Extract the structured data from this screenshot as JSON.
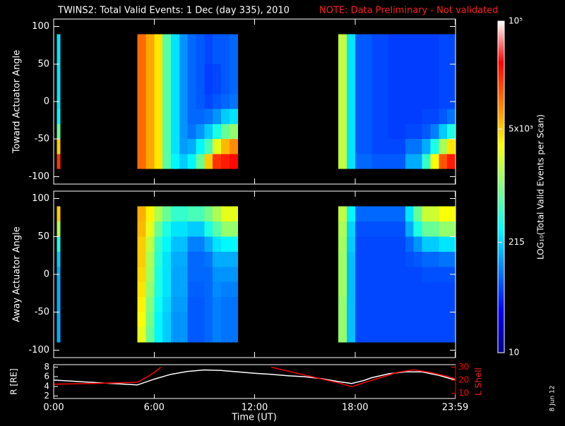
{
  "chart_data": [
    {
      "type": "heatmap",
      "title": "TWINS2: Total Valid Events:  1 Dec (day 335), 2010",
      "note": "NOTE: Data Preliminary - Not validated",
      "ylabel": "Toward Actuator Angle",
      "xlim": [
        0,
        24
      ],
      "ylim": [
        -110,
        110
      ],
      "yticks": [
        100,
        50,
        0,
        -50,
        -100
      ],
      "angle_edges": [
        -90,
        -70,
        -50,
        -30,
        -10,
        10,
        30,
        50,
        70,
        90
      ],
      "colorbar": {
        "label": "LOG₁₀(Total Valid Events per Scan)",
        "lim": [
          10,
          100000
        ],
        "log": true,
        "ticks": [
          10,
          215,
          {
            "value": 5000,
            "label": "5x10³"
          },
          {
            "value": 100000,
            "label": "10⁵"
          }
        ]
      },
      "columns": [
        {
          "start": 0.2,
          "end": 0.4,
          "values": [
            20000,
            5000,
            800,
            300,
            250,
            250,
            250,
            250,
            250
          ]
        },
        {
          "start": 5.0,
          "end": 5.5,
          "values": [
            12000,
            12000,
            12000,
            12000,
            12000,
            12000,
            12000,
            12000,
            12000
          ]
        },
        {
          "start": 5.5,
          "end": 6.0,
          "values": [
            7000,
            7000,
            7000,
            7000,
            7000,
            7000,
            7000,
            7000,
            7000
          ]
        },
        {
          "start": 6.0,
          "end": 6.5,
          "values": [
            4000,
            4000,
            4000,
            4000,
            4000,
            4000,
            4000,
            4000,
            4000
          ]
        },
        {
          "start": 6.5,
          "end": 7.0,
          "values": [
            700,
            700,
            700,
            700,
            700,
            700,
            700,
            700,
            700
          ]
        },
        {
          "start": 7.0,
          "end": 7.5,
          "values": [
            300,
            250,
            250,
            250,
            250,
            250,
            250,
            250,
            250
          ]
        },
        {
          "start": 7.5,
          "end": 8.0,
          "values": [
            200,
            130,
            120,
            120,
            120,
            120,
            120,
            120,
            120
          ]
        },
        {
          "start": 8.0,
          "end": 8.5,
          "values": [
            300,
            150,
            90,
            80,
            80,
            80,
            80,
            80,
            80
          ]
        },
        {
          "start": 8.5,
          "end": 9.0,
          "values": [
            800,
            300,
            120,
            80,
            70,
            70,
            70,
            70,
            70
          ]
        },
        {
          "start": 9.0,
          "end": 9.5,
          "values": [
            5000,
            600,
            200,
            90,
            60,
            55,
            55,
            60,
            60
          ]
        },
        {
          "start": 9.5,
          "end": 10.0,
          "values": [
            20000,
            2500,
            400,
            120,
            70,
            60,
            60,
            70,
            70
          ]
        },
        {
          "start": 10.0,
          "end": 10.5,
          "values": [
            25000,
            6000,
            800,
            200,
            80,
            70,
            70,
            70,
            70
          ]
        },
        {
          "start": 10.5,
          "end": 11.0,
          "values": [
            30000,
            9000,
            1200,
            250,
            90,
            80,
            80,
            80,
            80
          ]
        },
        {
          "start": 17.0,
          "end": 17.5,
          "values": [
            1800,
            1800,
            1800,
            1800,
            1800,
            1800,
            1800,
            1800,
            1800
          ]
        },
        {
          "start": 17.5,
          "end": 18.0,
          "values": [
            250,
            250,
            250,
            250,
            250,
            250,
            250,
            250,
            250
          ]
        },
        {
          "start": 18.0,
          "end": 19.0,
          "values": [
            80,
            70,
            70,
            70,
            70,
            70,
            70,
            70,
            70
          ]
        },
        {
          "start": 19.0,
          "end": 20.0,
          "values": [
            70,
            60,
            60,
            60,
            60,
            60,
            60,
            60,
            60
          ]
        },
        {
          "start": 20.0,
          "end": 21.0,
          "values": [
            70,
            60,
            55,
            55,
            55,
            55,
            55,
            55,
            55
          ]
        },
        {
          "start": 21.0,
          "end": 22.0,
          "values": [
            150,
            90,
            60,
            55,
            55,
            55,
            55,
            55,
            55
          ]
        },
        {
          "start": 22.0,
          "end": 22.5,
          "values": [
            500,
            150,
            70,
            60,
            55,
            55,
            55,
            55,
            55
          ]
        },
        {
          "start": 22.5,
          "end": 23.0,
          "values": [
            3000,
            400,
            100,
            60,
            55,
            55,
            55,
            55,
            55
          ]
        },
        {
          "start": 23.0,
          "end": 23.5,
          "values": [
            15000,
            1500,
            200,
            70,
            60,
            60,
            60,
            60,
            60
          ]
        },
        {
          "start": 23.5,
          "end": 24.0,
          "values": [
            25000,
            4000,
            400,
            90,
            60,
            60,
            60,
            60,
            60
          ]
        }
      ]
    },
    {
      "type": "heatmap",
      "ylabel": "Away Actuator Angle",
      "xlim": [
        0,
        24
      ],
      "ylim": [
        -110,
        110
      ],
      "yticks": [
        100,
        50,
        0,
        -50,
        -100
      ],
      "angle_edges": [
        -90,
        -70,
        -50,
        -30,
        -10,
        10,
        30,
        50,
        70,
        90
      ],
      "columns": [
        {
          "start": 0.2,
          "end": 0.4,
          "values": [
            150,
            150,
            150,
            150,
            150,
            200,
            400,
            1500,
            5000
          ]
        },
        {
          "start": 5.0,
          "end": 5.5,
          "values": [
            2500,
            3000,
            3500,
            4000,
            4500,
            5000,
            5000,
            6000,
            6500
          ]
        },
        {
          "start": 5.5,
          "end": 6.0,
          "values": [
            800,
            900,
            1000,
            1200,
            1400,
            1500,
            1800,
            2500,
            3500
          ]
        },
        {
          "start": 6.0,
          "end": 6.5,
          "values": [
            300,
            300,
            350,
            400,
            400,
            450,
            500,
            800,
            1500
          ]
        },
        {
          "start": 6.5,
          "end": 7.0,
          "values": [
            200,
            200,
            220,
            250,
            250,
            250,
            300,
            400,
            800
          ]
        },
        {
          "start": 7.0,
          "end": 8.0,
          "values": [
            120,
            120,
            130,
            140,
            140,
            150,
            180,
            250,
            500
          ]
        },
        {
          "start": 8.0,
          "end": 9.0,
          "values": [
            70,
            70,
            70,
            75,
            80,
            80,
            100,
            200,
            600
          ]
        },
        {
          "start": 9.0,
          "end": 9.5,
          "values": [
            80,
            80,
            80,
            80,
            80,
            90,
            150,
            400,
            900
          ]
        },
        {
          "start": 9.5,
          "end": 10.0,
          "values": [
            100,
            100,
            100,
            110,
            120,
            150,
            250,
            700,
            1500
          ]
        },
        {
          "start": 10.0,
          "end": 11.0,
          "values": [
            90,
            90,
            90,
            100,
            120,
            150,
            300,
            1200,
            2500
          ]
        },
        {
          "start": 17.0,
          "end": 17.5,
          "values": [
            1200,
            1200,
            1200,
            1300,
            1300,
            1300,
            1400,
            1500,
            1800
          ]
        },
        {
          "start": 17.5,
          "end": 18.0,
          "values": [
            180,
            180,
            180,
            180,
            180,
            180,
            200,
            220,
            300
          ]
        },
        {
          "start": 18.0,
          "end": 21.0,
          "values": [
            60,
            60,
            60,
            60,
            60,
            60,
            60,
            65,
            80
          ]
        },
        {
          "start": 21.0,
          "end": 21.5,
          "values": [
            60,
            60,
            60,
            60,
            60,
            65,
            80,
            150,
            250
          ]
        },
        {
          "start": 21.5,
          "end": 22.0,
          "values": [
            60,
            60,
            60,
            60,
            60,
            70,
            120,
            400,
            800
          ]
        },
        {
          "start": 22.0,
          "end": 23.0,
          "values": [
            60,
            60,
            60,
            60,
            65,
            80,
            200,
            800,
            2000
          ]
        },
        {
          "start": 23.0,
          "end": 24.0,
          "values": [
            60,
            60,
            60,
            60,
            65,
            90,
            250,
            1200,
            3000
          ]
        }
      ]
    },
    {
      "type": "line",
      "xlabel": "Time (UT)",
      "ylabel": "R [RE]",
      "y2label": "L Shell",
      "date": "8 Jun 12",
      "xlim": [
        0,
        24
      ],
      "xticks": [
        {
          "value": 0,
          "label": "0:00"
        },
        {
          "value": 6,
          "label": "6:00"
        },
        {
          "value": 12,
          "label": "12:00"
        },
        {
          "value": 18,
          "label": "18:00"
        },
        {
          "value": 23.98,
          "label": "23:59"
        }
      ],
      "ylim": [
        1.5,
        8.5
      ],
      "yticks": [
        8,
        6,
        4,
        2
      ],
      "y2lim": [
        6,
        32
      ],
      "y2ticks": [
        30,
        20,
        10
      ],
      "series": [
        {
          "name": "R",
          "color": "#ffffff",
          "x": [
            0,
            1,
            2,
            3,
            4,
            5,
            6,
            7,
            8,
            9,
            10,
            11,
            12,
            13,
            14,
            15,
            16,
            17,
            17.8,
            18.5,
            19,
            20,
            21,
            22,
            23,
            24
          ],
          "values": [
            5.3,
            5.1,
            4.9,
            4.7,
            4.5,
            4.3,
            5.5,
            6.5,
            7.1,
            7.4,
            7.3,
            7.0,
            6.7,
            6.5,
            6.2,
            6.0,
            5.6,
            5.0,
            4.6,
            5.2,
            5.8,
            6.6,
            7.0,
            7.0,
            6.3,
            5.3
          ]
        },
        {
          "name": "L Shell",
          "color": "#ff0000",
          "axis": "y2",
          "x": [
            0,
            2,
            4,
            5,
            5.5,
            6,
            6.4,
            9,
            13,
            14,
            15,
            16,
            17,
            17.8,
            18.5,
            19.5,
            20.5,
            21.5,
            22.5,
            23.5,
            24
          ],
          "values": [
            17,
            17.5,
            18,
            18.5,
            22,
            26,
            30,
            null,
            30,
            27,
            24,
            21,
            18,
            15,
            18,
            22,
            26,
            28,
            26,
            23,
            21
          ]
        }
      ]
    }
  ]
}
